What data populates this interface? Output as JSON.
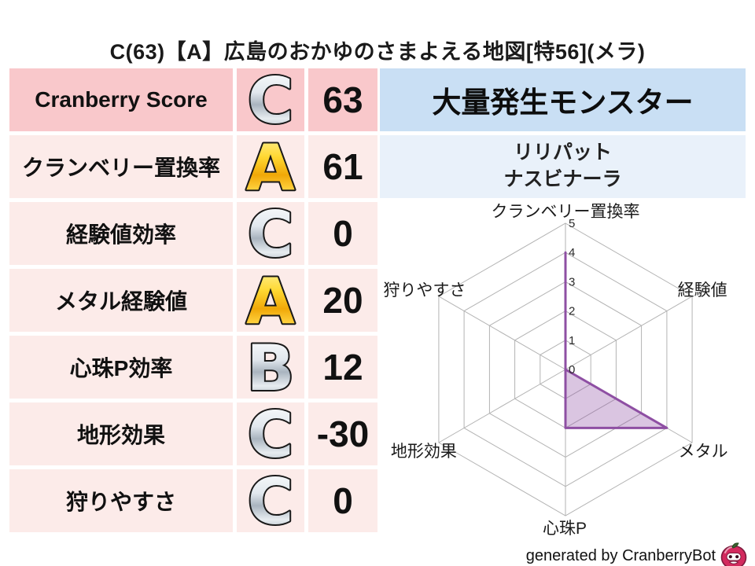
{
  "title": "C(63)【A】広島のおかゆのさまよえる地図[特56](メラ)",
  "table": {
    "rows": [
      {
        "label": "Cranberry Score",
        "grade": "C",
        "grade_color": "silver",
        "value": "63"
      },
      {
        "label": "クランベリー置換率",
        "grade": "A",
        "grade_color": "gold",
        "value": "61"
      },
      {
        "label": "経験値効率",
        "grade": "C",
        "grade_color": "silver",
        "value": "0"
      },
      {
        "label": "メタル経験値",
        "grade": "A",
        "grade_color": "gold",
        "value": "20"
      },
      {
        "label": "心珠P効率",
        "grade": "B",
        "grade_color": "silver",
        "value": "12"
      },
      {
        "label": "地形効果",
        "grade": "C",
        "grade_color": "silver",
        "value": "-30"
      },
      {
        "label": "狩りやすさ",
        "grade": "C",
        "grade_color": "silver",
        "value": "0"
      }
    ]
  },
  "monster_panel": {
    "header": "大量発生モンスター",
    "monsters": [
      "リリパット",
      "ナスビナーラ"
    ]
  },
  "chart_data": {
    "type": "radar",
    "axes": [
      "クランベリー置換率",
      "経験値",
      "メタル",
      "心珠P",
      "地形効果",
      "狩りやすさ"
    ],
    "values": [
      4,
      0,
      4,
      2,
      0,
      0
    ],
    "ticks": [
      "0",
      "1",
      "2",
      "3",
      "4",
      "5"
    ],
    "max": 5,
    "series_color": "#8e4fa3",
    "fill_color": "rgba(142,79,163,0.33)",
    "grid_color": "#b3b3b3",
    "legend": "none",
    "grid": "hexagonal"
  },
  "footer": {
    "credit": "generated by CranberryBot",
    "logo": "cranberry-mascot-icon"
  },
  "colors": {
    "row_highlight_bg": "#f9c8cb",
    "row_bg": "#fcebe9",
    "monster_header_bg": "#c9dff4",
    "monster_list_bg": "#e9f1fa",
    "grade_silver": "#b8c2cc",
    "grade_gold": "#f5b700"
  }
}
